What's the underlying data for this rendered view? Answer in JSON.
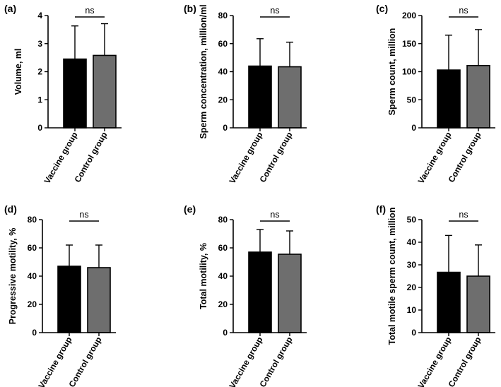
{
  "chart_data": [
    {
      "panel": "(a)",
      "type": "bar",
      "categories": [
        "Vaccine group",
        "Control group"
      ],
      "values": [
        2.45,
        2.58
      ],
      "errors": [
        1.18,
        1.13
      ],
      "colors": [
        "#000000",
        "#6e6e6e"
      ],
      "ylabel": "Volume, ml",
      "ylim": [
        0,
        4
      ],
      "yticks": [
        "0",
        "1",
        "2",
        "3",
        "4"
      ],
      "annotation": "ns"
    },
    {
      "panel": "(b)",
      "type": "bar",
      "categories": [
        "Vaccine group",
        "Control group"
      ],
      "values": [
        44,
        43.5
      ],
      "errors": [
        19.5,
        17.5
      ],
      "colors": [
        "#000000",
        "#6e6e6e"
      ],
      "ylabel": "Sperm concentration, million/ml",
      "ylim": [
        0,
        80
      ],
      "yticks": [
        "0",
        "20",
        "40",
        "60",
        "80"
      ],
      "annotation": "ns"
    },
    {
      "panel": "(c)",
      "type": "bar",
      "categories": [
        "Vaccine group",
        "Control group"
      ],
      "values": [
        103,
        111
      ],
      "errors": [
        62,
        64
      ],
      "colors": [
        "#000000",
        "#6e6e6e"
      ],
      "ylabel": "Sperm count, million",
      "ylim": [
        0,
        200
      ],
      "yticks": [
        "0",
        "50",
        "100",
        "150",
        "200"
      ],
      "annotation": "ns"
    },
    {
      "panel": "(d)",
      "type": "bar",
      "categories": [
        "Vaccine group",
        "Control group"
      ],
      "values": [
        47,
        46
      ],
      "errors": [
        15,
        16
      ],
      "colors": [
        "#000000",
        "#6e6e6e"
      ],
      "ylabel": "Progressive motility, %",
      "ylim": [
        0,
        80
      ],
      "yticks": [
        "0",
        "20",
        "40",
        "60",
        "80"
      ],
      "annotation": "ns"
    },
    {
      "panel": "(e)",
      "type": "bar",
      "categories": [
        "Vaccine group",
        "Control group"
      ],
      "values": [
        57,
        55.5
      ],
      "errors": [
        16,
        16.5
      ],
      "colors": [
        "#000000",
        "#6e6e6e"
      ],
      "ylabel": "Total motility, %",
      "ylim": [
        0,
        80
      ],
      "yticks": [
        "0",
        "20",
        "40",
        "60",
        "80"
      ],
      "annotation": "ns"
    },
    {
      "panel": "(f)",
      "type": "bar",
      "categories": [
        "Vaccine group",
        "Control group"
      ],
      "values": [
        26.7,
        25
      ],
      "errors": [
        16.3,
        13.8
      ],
      "colors": [
        "#000000",
        "#6e6e6e"
      ],
      "ylabel": "Total motile sperm count, million",
      "ylim": [
        0,
        50
      ],
      "yticks": [
        "0",
        "10",
        "20",
        "30",
        "40",
        "50"
      ],
      "annotation": "ns"
    }
  ]
}
